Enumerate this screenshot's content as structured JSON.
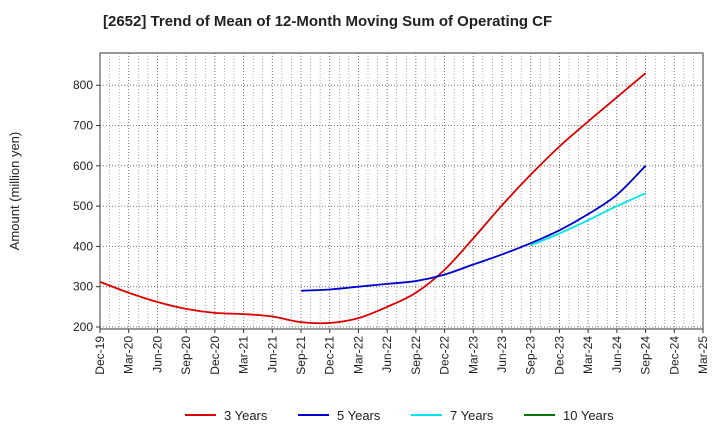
{
  "chart_data": {
    "type": "line",
    "title": "[2652]  Trend of Mean of 12-Month Moving Sum of Operating CF",
    "xlabel": "",
    "ylabel": "Amount (million yen)",
    "ylim": [
      195,
      880
    ],
    "yticks": [
      200,
      300,
      400,
      500,
      600,
      700,
      800
    ],
    "grid": true,
    "legend_position": "bottom",
    "categories": [
      "Dec-19",
      "Mar-20",
      "Jun-20",
      "Sep-20",
      "Dec-20",
      "Mar-21",
      "Jun-21",
      "Sep-21",
      "Dec-21",
      "Mar-22",
      "Jun-22",
      "Sep-22",
      "Dec-22",
      "Mar-23",
      "Jun-23",
      "Sep-23",
      "Dec-23",
      "Mar-24",
      "Jun-24",
      "Sep-24",
      "Dec-24",
      "Mar-25"
    ],
    "series": [
      {
        "name": "3 Years",
        "color": "#dd0000",
        "values": [
          312,
          285,
          262,
          245,
          235,
          232,
          226,
          212,
          210,
          222,
          250,
          285,
          342,
          420,
          502,
          578,
          648,
          710,
          770,
          830,
          null,
          null
        ]
      },
      {
        "name": "5 Years",
        "color": "#0000cc",
        "values": [
          null,
          null,
          null,
          null,
          null,
          null,
          null,
          290,
          293,
          300,
          307,
          314,
          330,
          355,
          380,
          408,
          440,
          480,
          528,
          600,
          null,
          null
        ]
      },
      {
        "name": "7 Years",
        "color": "#00e5ee",
        "values": [
          null,
          null,
          null,
          null,
          null,
          null,
          null,
          null,
          null,
          null,
          null,
          null,
          null,
          null,
          null,
          403,
          432,
          465,
          500,
          532,
          null,
          null
        ]
      },
      {
        "name": "10 Years",
        "color": "#007700",
        "values": [
          null,
          null,
          null,
          null,
          null,
          null,
          null,
          null,
          null,
          null,
          null,
          null,
          null,
          null,
          null,
          null,
          null,
          null,
          null,
          null,
          null,
          null
        ]
      }
    ]
  }
}
